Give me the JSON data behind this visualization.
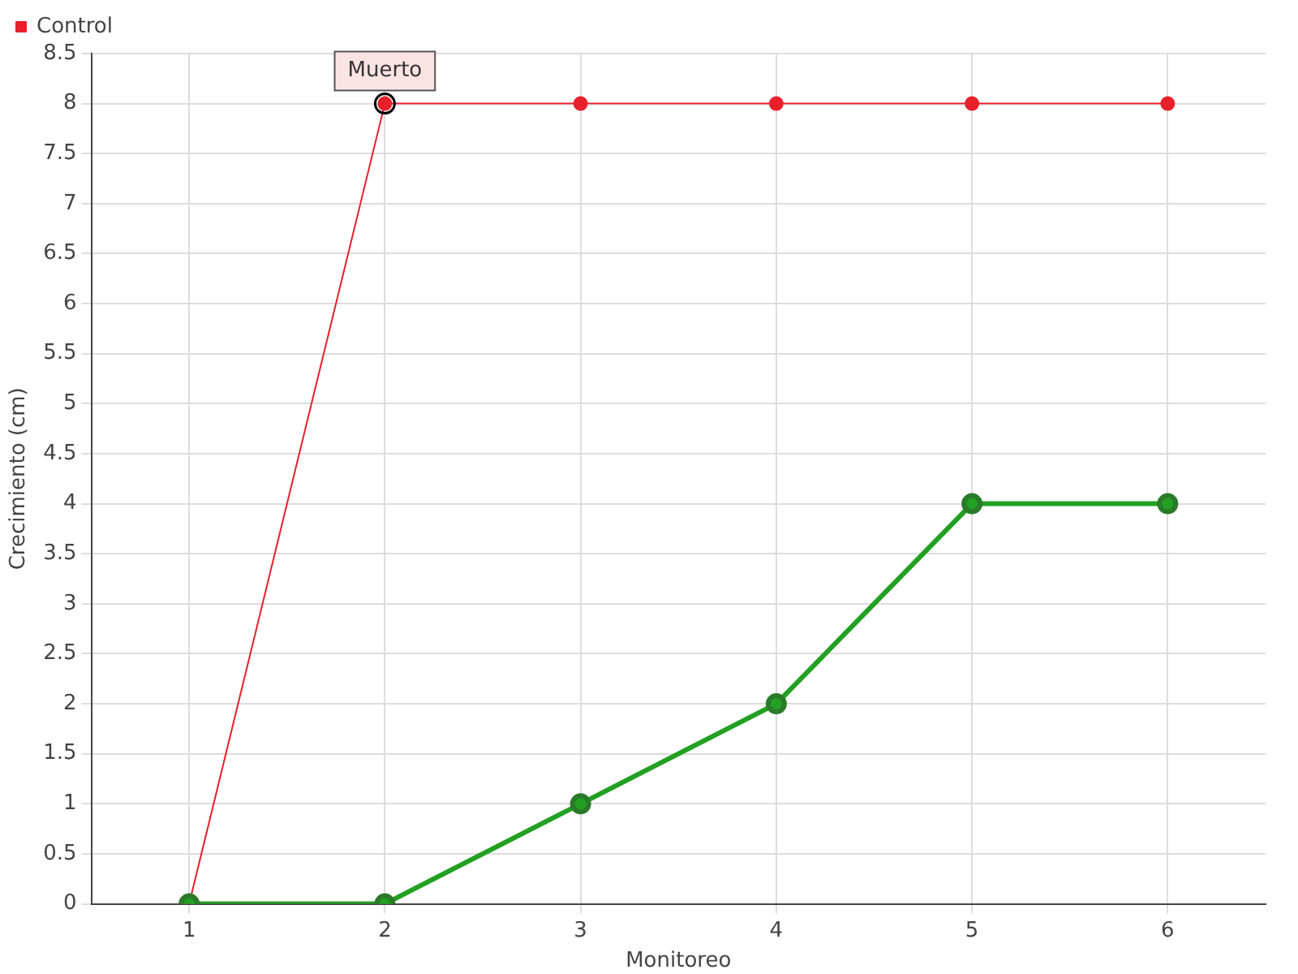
{
  "chart_data": {
    "type": "line",
    "xlabel": "Monitoreo",
    "ylabel": "Crecimiento (cm)",
    "x": [
      1,
      2,
      3,
      4,
      5,
      6
    ],
    "series": [
      {
        "color": "#22a022",
        "values": [
          0,
          0,
          1,
          2,
          4,
          4
        ]
      },
      {
        "name": "Control",
        "color": "#e8202a",
        "values": [
          0,
          8,
          8,
          8,
          8,
          8
        ]
      }
    ],
    "xlim": [
      0.5,
      6.5
    ],
    "xticks": [
      1,
      2,
      3,
      4,
      5,
      6
    ],
    "ylim": [
      0,
      8.5
    ],
    "yticks": [
      0,
      0.5,
      1,
      1.5,
      2,
      2.5,
      3,
      3.5,
      4,
      4.5,
      5,
      5.5,
      6,
      6.5,
      7,
      7.5,
      8,
      8.5
    ],
    "grid": true,
    "legend": "top left",
    "marker": "circle",
    "line_style": "solid",
    "annotations": [
      {
        "text": "Muerto",
        "x": 2,
        "y": 8
      }
    ]
  }
}
